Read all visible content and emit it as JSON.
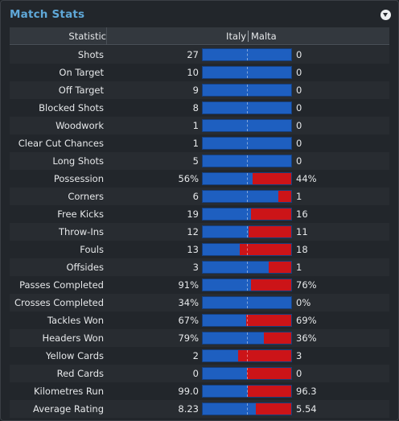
{
  "panel": {
    "title": "Match Stats"
  },
  "table": {
    "headers": {
      "statistic": "Statistic",
      "team1": "Italy",
      "team2": "Malta"
    },
    "colors": {
      "team1": "#1e5fc0",
      "team2": "#cc1418"
    },
    "rows": [
      {
        "label": "Shots",
        "v1": "27",
        "v2": "0",
        "share1": 1.0
      },
      {
        "label": "On Target",
        "v1": "10",
        "v2": "0",
        "share1": 1.0
      },
      {
        "label": "Off Target",
        "v1": "9",
        "v2": "0",
        "share1": 1.0
      },
      {
        "label": "Blocked Shots",
        "v1": "8",
        "v2": "0",
        "share1": 1.0
      },
      {
        "label": "Woodwork",
        "v1": "1",
        "v2": "0",
        "share1": 1.0
      },
      {
        "label": "Clear Cut Chances",
        "v1": "1",
        "v2": "0",
        "share1": 1.0
      },
      {
        "label": "Long Shots",
        "v1": "5",
        "v2": "0",
        "share1": 1.0
      },
      {
        "label": "Possession",
        "v1": "56%",
        "v2": "44%",
        "share1": 0.56
      },
      {
        "label": "Corners",
        "v1": "6",
        "v2": "1",
        "share1": 0.857
      },
      {
        "label": "Free Kicks",
        "v1": "19",
        "v2": "16",
        "share1": 0.543
      },
      {
        "label": "Throw-Ins",
        "v1": "12",
        "v2": "11",
        "share1": 0.522
      },
      {
        "label": "Fouls",
        "v1": "13",
        "v2": "18",
        "share1": 0.419
      },
      {
        "label": "Offsides",
        "v1": "3",
        "v2": "1",
        "share1": 0.75
      },
      {
        "label": "Passes Completed",
        "v1": "91%",
        "v2": "76%",
        "share1": 0.545
      },
      {
        "label": "Crosses Completed",
        "v1": "34%",
        "v2": "0%",
        "share1": 1.0
      },
      {
        "label": "Tackles Won",
        "v1": "67%",
        "v2": "69%",
        "share1": 0.493
      },
      {
        "label": "Headers Won",
        "v1": "79%",
        "v2": "36%",
        "share1": 0.687
      },
      {
        "label": "Yellow Cards",
        "v1": "2",
        "v2": "3",
        "share1": 0.4
      },
      {
        "label": "Red Cards",
        "v1": "0",
        "v2": "0",
        "share1": 0.5
      },
      {
        "label": "Kilometres Run",
        "v1": "99.0",
        "v2": "96.3",
        "share1": 0.507
      },
      {
        "label": "Average Rating",
        "v1": "8.23",
        "v2": "5.54",
        "share1": 0.598
      }
    ]
  }
}
